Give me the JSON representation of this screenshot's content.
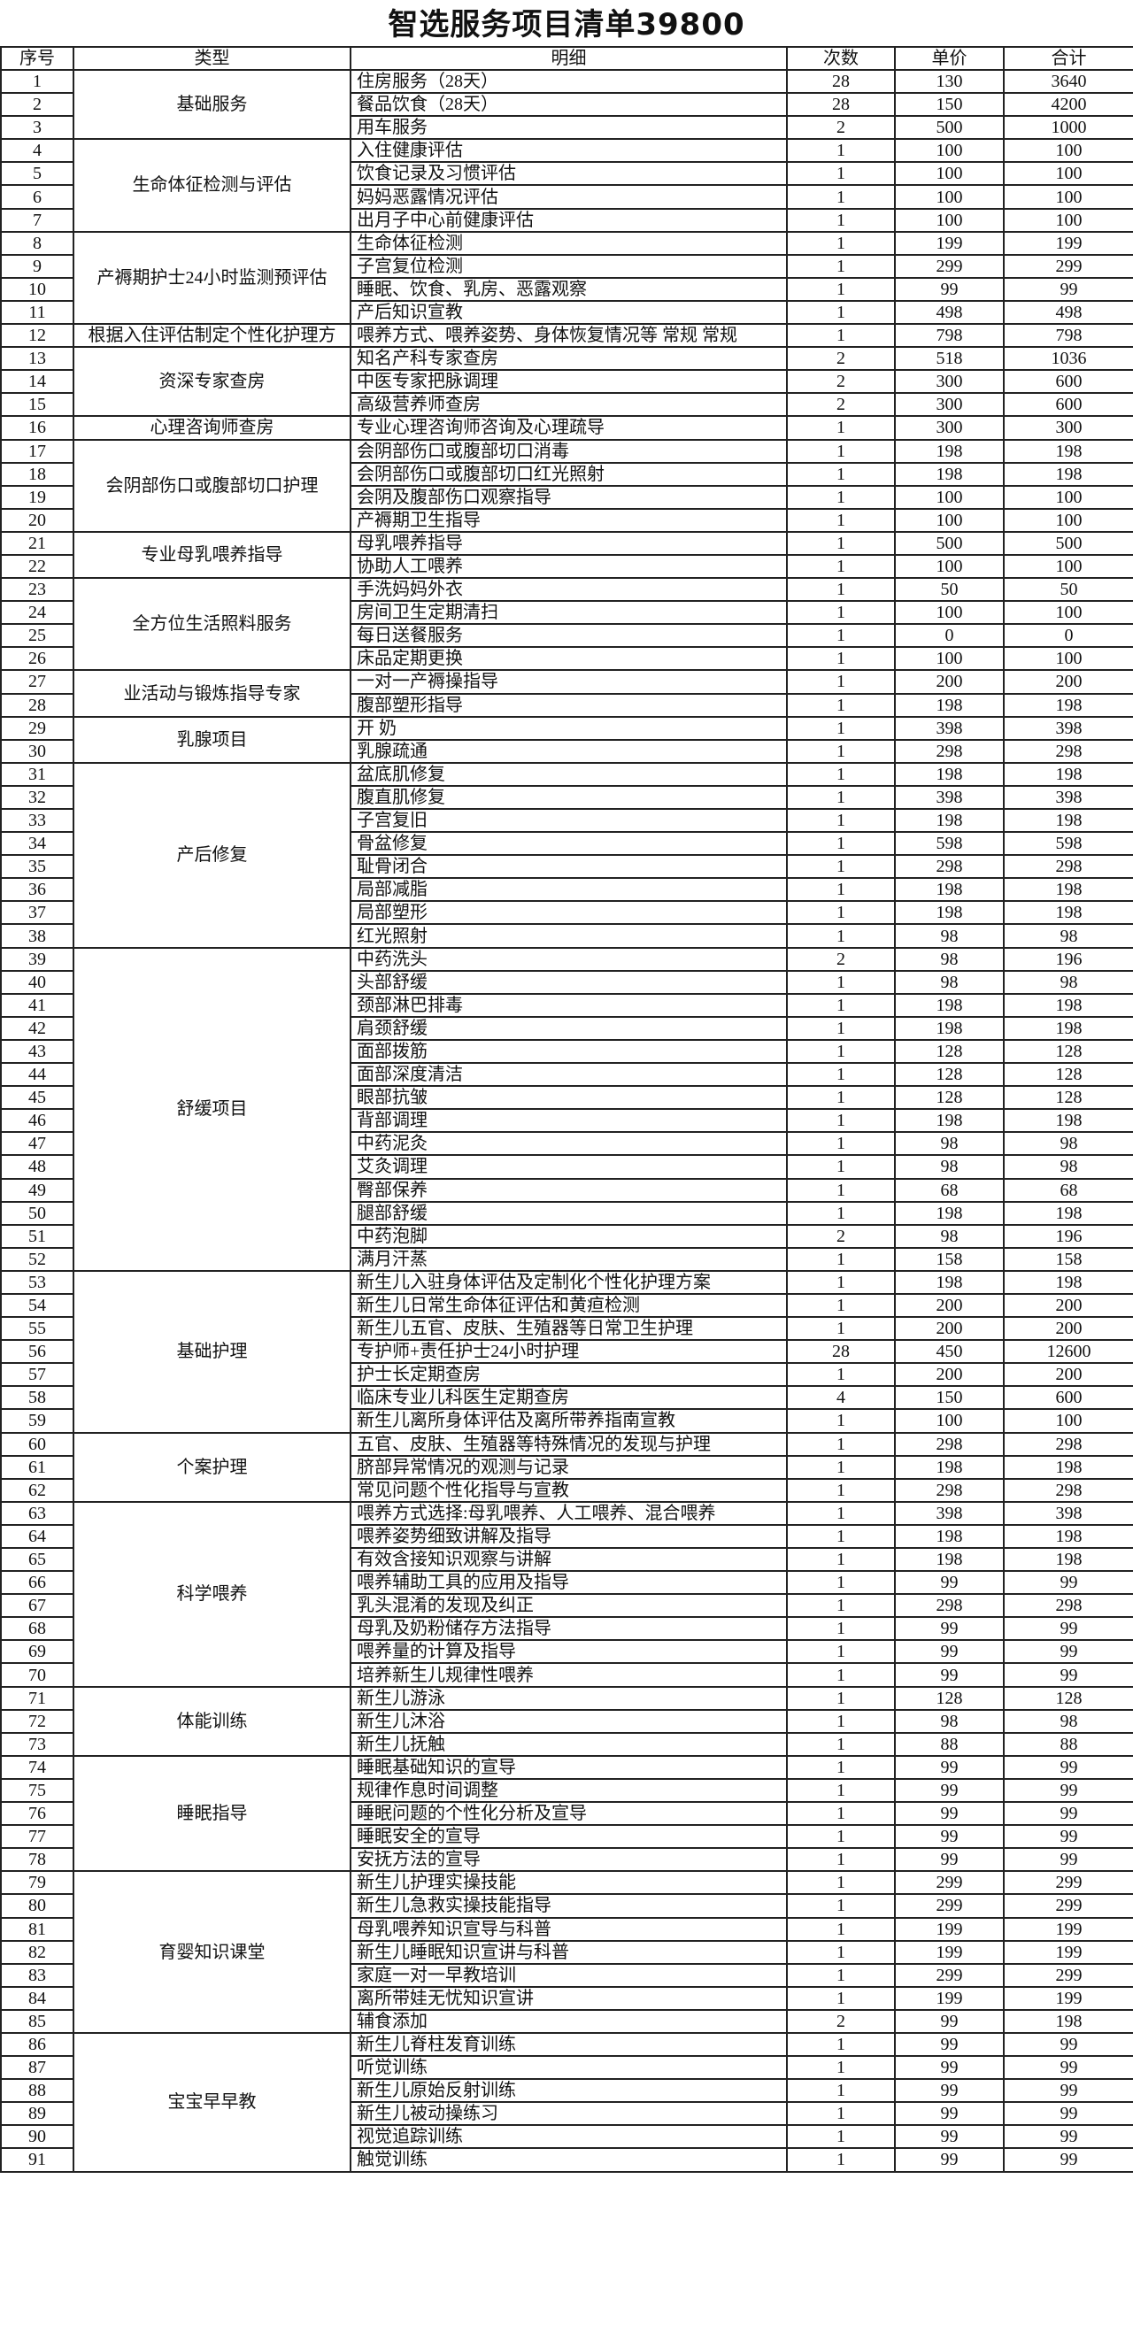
{
  "title": "智选服务项目清单39800",
  "headers": [
    "序号",
    "类型",
    "明细",
    "次数",
    "单价",
    "合计"
  ],
  "groups": [
    {
      "type": "基础服务",
      "items": [
        [
          1,
          "住房服务（28天）",
          28,
          130,
          3640
        ],
        [
          2,
          "餐品饮食（28天）",
          28,
          150,
          4200
        ],
        [
          3,
          "用车服务",
          2,
          500,
          1000
        ]
      ]
    },
    {
      "type": "生命体征检测与评估",
      "items": [
        [
          4,
          "入住健康评估",
          1,
          100,
          100
        ],
        [
          5,
          "饮食记录及习惯评估",
          1,
          100,
          100
        ],
        [
          6,
          "妈妈恶露情况评估",
          1,
          100,
          100
        ],
        [
          7,
          "出月子中心前健康评估",
          1,
          100,
          100
        ]
      ]
    },
    {
      "type": "产褥期护士24小时监测预评估",
      "items": [
        [
          8,
          "生命体征检测",
          1,
          199,
          199
        ],
        [
          9,
          "子宫复位检测",
          1,
          299,
          299
        ],
        [
          10,
          "睡眠、饮食、乳房、恶露观察",
          1,
          99,
          99
        ],
        [
          11,
          "产后知识宣教",
          1,
          498,
          498
        ]
      ]
    },
    {
      "type": "根据入住评估制定个性化护理方",
      "items": [
        [
          12,
          "喂养方式、喂养姿势、身体恢复情况等 常规 常规",
          1,
          798,
          798
        ]
      ]
    },
    {
      "type": "资深专家查房",
      "items": [
        [
          13,
          "知名产科专家查房",
          2,
          518,
          1036
        ],
        [
          14,
          "中医专家把脉调理",
          2,
          300,
          600
        ],
        [
          15,
          "高级营养师查房",
          2,
          300,
          600
        ]
      ]
    },
    {
      "type": "心理咨询师查房",
      "items": [
        [
          16,
          "专业心理咨询师咨询及心理疏导",
          1,
          300,
          300
        ]
      ]
    },
    {
      "type": "会阴部伤口或腹部切口护理",
      "items": [
        [
          17,
          "会阴部伤口或腹部切口消毒",
          1,
          198,
          198
        ],
        [
          18,
          "会阴部伤口或腹部切口红光照射",
          1,
          198,
          198
        ],
        [
          19,
          "会阴及腹部伤口观察指导",
          1,
          100,
          100
        ],
        [
          20,
          "产褥期卫生指导",
          1,
          100,
          100
        ]
      ]
    },
    {
      "type": "专业母乳喂养指导",
      "items": [
        [
          21,
          "母乳喂养指导",
          1,
          500,
          500
        ],
        [
          22,
          "协助人工喂养",
          1,
          100,
          100
        ]
      ]
    },
    {
      "type": "全方位生活照料服务",
      "items": [
        [
          23,
          "手洗妈妈外衣",
          1,
          50,
          50
        ],
        [
          24,
          "房间卫生定期清扫",
          1,
          100,
          100
        ],
        [
          25,
          "每日送餐服务",
          1,
          0,
          0
        ],
        [
          26,
          "床品定期更换",
          1,
          100,
          100
        ]
      ]
    },
    {
      "type": "业活动与锻炼指导专家",
      "items": [
        [
          27,
          "一对一产褥操指导",
          1,
          200,
          200
        ],
        [
          28,
          "腹部塑形指导",
          1,
          198,
          198
        ]
      ]
    },
    {
      "type": "乳腺项目",
      "items": [
        [
          29,
          "开  奶",
          1,
          398,
          398
        ],
        [
          30,
          "乳腺疏通",
          1,
          298,
          298
        ]
      ]
    },
    {
      "type": "产后修复",
      "items": [
        [
          31,
          "盆底肌修复",
          1,
          198,
          198
        ],
        [
          32,
          "腹直肌修复",
          1,
          398,
          398
        ],
        [
          33,
          "子宫复旧",
          1,
          198,
          198
        ],
        [
          34,
          "骨盆修复",
          1,
          598,
          598
        ],
        [
          35,
          "耻骨闭合",
          1,
          298,
          298
        ],
        [
          36,
          "局部减脂",
          1,
          198,
          198
        ],
        [
          37,
          "局部塑形",
          1,
          198,
          198
        ],
        [
          38,
          "红光照射",
          1,
          98,
          98
        ]
      ]
    },
    {
      "type": "舒缓项目",
      "items": [
        [
          39,
          "中药洗头",
          2,
          98,
          196
        ],
        [
          40,
          "头部舒缓",
          1,
          98,
          98
        ],
        [
          41,
          "颈部淋巴排毒",
          1,
          198,
          198
        ],
        [
          42,
          "肩颈舒缓",
          1,
          198,
          198
        ],
        [
          43,
          "面部拨筋",
          1,
          128,
          128
        ],
        [
          44,
          "面部深度清洁",
          1,
          128,
          128
        ],
        [
          45,
          "眼部抗皱",
          1,
          128,
          128
        ],
        [
          46,
          "背部调理",
          1,
          198,
          198
        ],
        [
          47,
          "中药泥灸",
          1,
          98,
          98
        ],
        [
          48,
          "艾灸调理",
          1,
          98,
          98
        ],
        [
          49,
          "臀部保养",
          1,
          68,
          68
        ],
        [
          50,
          "腿部舒缓",
          1,
          198,
          198
        ],
        [
          51,
          "中药泡脚",
          2,
          98,
          196
        ],
        [
          52,
          "满月汗蒸",
          1,
          158,
          158
        ]
      ]
    },
    {
      "type": "基础护理",
      "items": [
        [
          53,
          "新生儿入驻身体评估及定制化个性化护理方案",
          1,
          198,
          198
        ],
        [
          54,
          "新生儿日常生命体征评估和黄疸检测",
          1,
          200,
          200
        ],
        [
          55,
          "新生儿五官、皮肤、生殖器等日常卫生护理",
          1,
          200,
          200
        ],
        [
          56,
          "专护师+责任护士24小时护理",
          28,
          450,
          12600
        ],
        [
          57,
          "护士长定期查房",
          1,
          200,
          200
        ],
        [
          58,
          "临床专业儿科医生定期查房",
          4,
          150,
          600
        ],
        [
          59,
          "新生儿离所身体评估及离所带养指南宣教",
          1,
          100,
          100
        ]
      ]
    },
    {
      "type": "个案护理",
      "items": [
        [
          60,
          "五官、皮肤、生殖器等特殊情况的发现与护理",
          1,
          298,
          298
        ],
        [
          61,
          "脐部异常情况的观测与记录",
          1,
          198,
          198
        ],
        [
          62,
          "常见问题个性化指导与宣教",
          1,
          298,
          298
        ]
      ]
    },
    {
      "type": "科学喂养",
      "items": [
        [
          63,
          "喂养方式选择:母乳喂养、人工喂养、混合喂养",
          1,
          398,
          398
        ],
        [
          64,
          "喂养姿势细致讲解及指导",
          1,
          198,
          198
        ],
        [
          65,
          "有效含接知识观察与讲解",
          1,
          198,
          198
        ],
        [
          66,
          "喂养辅助工具的应用及指导",
          1,
          99,
          99
        ],
        [
          67,
          "乳头混淆的发现及纠正",
          1,
          298,
          298
        ],
        [
          68,
          "母乳及奶粉储存方法指导",
          1,
          99,
          99
        ],
        [
          69,
          "喂养量的计算及指导",
          1,
          99,
          99
        ],
        [
          70,
          "培养新生儿规律性喂养",
          1,
          99,
          99
        ]
      ]
    },
    {
      "type": "体能训练",
      "items": [
        [
          71,
          "新生儿游泳",
          1,
          128,
          128
        ],
        [
          72,
          "新生儿沐浴",
          1,
          98,
          98
        ],
        [
          73,
          "新生儿抚触",
          1,
          88,
          88
        ]
      ]
    },
    {
      "type": "睡眠指导",
      "items": [
        [
          74,
          "睡眠基础知识的宣导",
          1,
          99,
          99
        ],
        [
          75,
          "规律作息时间调整",
          1,
          99,
          99
        ],
        [
          76,
          "睡眠问题的个性化分析及宣导",
          1,
          99,
          99
        ],
        [
          77,
          "睡眠安全的宣导",
          1,
          99,
          99
        ],
        [
          78,
          "安抚方法的宣导",
          1,
          99,
          99
        ]
      ]
    },
    {
      "type": "育婴知识课堂",
      "items": [
        [
          79,
          "新生儿护理实操技能",
          1,
          299,
          299
        ],
        [
          80,
          "新生儿急救实操技能指导",
          1,
          299,
          299
        ],
        [
          81,
          "母乳喂养知识宣导与科普",
          1,
          199,
          199
        ],
        [
          82,
          "新生儿睡眠知识宣讲与科普",
          1,
          199,
          199
        ],
        [
          83,
          "家庭一对一早教培训",
          1,
          299,
          299
        ],
        [
          84,
          "离所带娃无忧知识宣讲",
          1,
          199,
          199
        ],
        [
          85,
          "辅食添加",
          2,
          99,
          198
        ]
      ]
    },
    {
      "type": "宝宝早早教",
      "items": [
        [
          86,
          "新生儿脊柱发育训练",
          1,
          99,
          99
        ],
        [
          87,
          "听觉训练",
          1,
          99,
          99
        ],
        [
          88,
          "新生儿原始反射训练",
          1,
          99,
          99
        ],
        [
          89,
          "新生儿被动操练习",
          1,
          99,
          99
        ],
        [
          90,
          "视觉追踪训练",
          1,
          99,
          99
        ],
        [
          91,
          "触觉训练",
          1,
          99,
          99
        ]
      ]
    }
  ]
}
